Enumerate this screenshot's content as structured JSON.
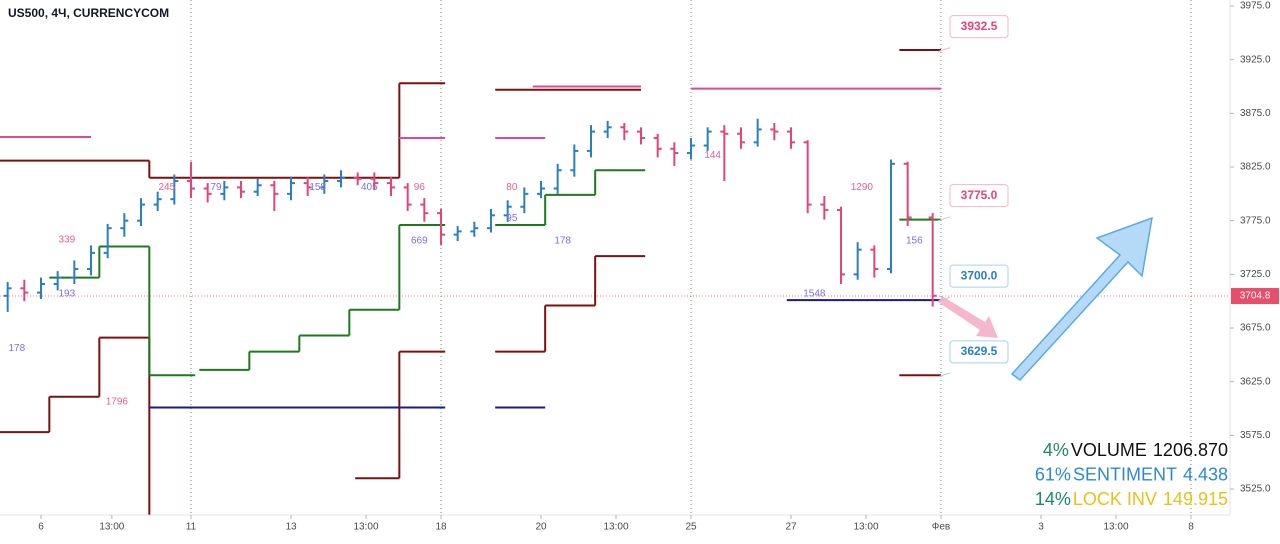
{
  "chart_data": {
    "type": "ohlc",
    "title": "US500, 4Ч, CURRENCYCOM",
    "xlim": [
      -4.92,
      142.68
    ],
    "ylim": [
      3500.8,
      3980.6
    ],
    "xticks": [
      {
        "value": 0,
        "label": "6"
      },
      {
        "value": 8.5,
        "label": "13:00"
      },
      {
        "value": 18,
        "label": "11"
      },
      {
        "value": 30,
        "label": "13"
      },
      {
        "value": 39,
        "label": "13:00"
      },
      {
        "value": 48,
        "label": "18"
      },
      {
        "value": 60,
        "label": "20"
      },
      {
        "value": 69,
        "label": "13:00"
      },
      {
        "value": 78,
        "label": "25"
      },
      {
        "value": 90,
        "label": "27"
      },
      {
        "value": 99,
        "label": "13:00"
      },
      {
        "value": 108,
        "label": "Фев"
      },
      {
        "value": 120,
        "label": "3"
      },
      {
        "value": 129,
        "label": "13:00"
      },
      {
        "value": 138,
        "label": "8"
      }
    ],
    "week_line_ticks": [
      2,
      5,
      8,
      11,
      14
    ],
    "yticks": [
      {
        "value": 3525,
        "label": "3525.0"
      },
      {
        "value": 3575,
        "label": "3575.0"
      },
      {
        "value": 3625,
        "label": "3625.0"
      },
      {
        "value": 3675,
        "label": "3675.0"
      },
      {
        "value": 3725,
        "label": "3725.0"
      },
      {
        "value": 3775,
        "label": "3775.0"
      },
      {
        "value": 3825,
        "label": "3825.0"
      },
      {
        "value": 3875,
        "label": "3875.0"
      },
      {
        "value": 3925,
        "label": "3925.0"
      },
      {
        "value": 3975,
        "label": "3975.0"
      }
    ],
    "up_color": "#2a7fc1",
    "down_color": "#e0457b",
    "x": [
      -4,
      -2,
      0,
      2,
      4,
      6,
      8,
      10,
      12,
      14,
      16,
      18,
      20,
      22,
      24,
      26,
      28,
      30,
      32,
      34,
      36,
      38,
      40,
      42,
      44,
      46,
      48,
      50,
      52,
      54,
      56,
      58,
      60,
      62,
      64,
      66,
      68,
      70,
      72,
      74,
      76,
      78,
      80,
      82,
      84,
      86,
      88,
      90,
      92,
      94,
      96,
      98,
      100,
      102,
      104,
      107
    ],
    "open": [
      3705,
      3712,
      3708,
      3716,
      3722,
      3730,
      3745,
      3768,
      3775,
      3790,
      3795,
      3812,
      3805,
      3800,
      3806,
      3802,
      3808,
      3800,
      3810,
      3806,
      3812,
      3815,
      3814,
      3810,
      3806,
      3790,
      3782,
      3762,
      3765,
      3768,
      3780,
      3788,
      3800,
      3805,
      3822,
      3840,
      3858,
      3862,
      3858,
      3852,
      3842,
      3838,
      3845,
      3858,
      3856,
      3848,
      3860,
      3858,
      3848,
      3790,
      3785,
      3725,
      3748,
      3730,
      3828,
      3778
    ],
    "high": [
      3718,
      3720,
      3722,
      3728,
      3738,
      3752,
      3772,
      3782,
      3796,
      3802,
      3818,
      3830,
      3810,
      3812,
      3812,
      3814,
      3812,
      3816,
      3816,
      3818,
      3822,
      3820,
      3820,
      3816,
      3810,
      3796,
      3786,
      3770,
      3774,
      3786,
      3794,
      3806,
      3812,
      3828,
      3846,
      3864,
      3868,
      3866,
      3862,
      3856,
      3848,
      3852,
      3862,
      3864,
      3862,
      3870,
      3866,
      3862,
      3850,
      3798,
      3788,
      3755,
      3752,
      3832,
      3830,
      3782
    ],
    "low": [
      3690,
      3700,
      3702,
      3710,
      3716,
      3724,
      3740,
      3760,
      3770,
      3784,
      3790,
      3796,
      3792,
      3794,
      3796,
      3798,
      3784,
      3794,
      3798,
      3800,
      3806,
      3808,
      3804,
      3798,
      3784,
      3774,
      3752,
      3756,
      3760,
      3764,
      3774,
      3782,
      3796,
      3800,
      3816,
      3834,
      3852,
      3850,
      3846,
      3834,
      3826,
      3832,
      3840,
      3812,
      3842,
      3844,
      3850,
      3842,
      3782,
      3776,
      3716,
      3720,
      3722,
      3726,
      3770,
      3695
    ],
    "close": [
      3712,
      3708,
      3716,
      3722,
      3730,
      3745,
      3768,
      3775,
      3790,
      3795,
      3812,
      3805,
      3800,
      3806,
      3802,
      3808,
      3800,
      3810,
      3806,
      3812,
      3815,
      3814,
      3810,
      3806,
      3790,
      3782,
      3762,
      3765,
      3768,
      3780,
      3788,
      3800,
      3805,
      3822,
      3840,
      3858,
      3862,
      3858,
      3852,
      3842,
      3838,
      3845,
      3858,
      3856,
      3848,
      3860,
      3858,
      3848,
      3790,
      3785,
      3725,
      3748,
      3730,
      3828,
      3778,
      3705
    ],
    "last_price": 3704.8,
    "last_price_color": "#e84e6b",
    "levels": [
      {
        "color": "#7b1010",
        "segments": [
          [
            -5,
            13,
            3831
          ],
          [
            13,
            43,
            3815
          ],
          [
            43,
            48.5,
            3903
          ],
          [
            54.5,
            72,
            3897
          ],
          [
            103,
            108,
            3934
          ],
          [
            103,
            108,
            3631
          ]
        ]
      },
      {
        "color": "#7b1010",
        "segments": [
          [
            -5,
            1,
            3578
          ],
          [
            1,
            7,
            3611
          ],
          [
            7,
            13,
            3666
          ],
          [
            13,
            13,
            3501
          ],
          [
            37.7,
            43,
            3535
          ],
          [
            43,
            48.5,
            3653
          ],
          [
            54.5,
            60.5,
            3653
          ],
          [
            60.5,
            66.5,
            3696
          ],
          [
            66.5,
            72.5,
            3742
          ]
        ]
      },
      {
        "color": "#1f7a1f",
        "segments": [
          [
            1,
            7,
            3722
          ],
          [
            7,
            13,
            3751
          ],
          [
            13,
            18.5,
            3631
          ],
          [
            19,
            25,
            3636
          ],
          [
            25,
            31,
            3653
          ],
          [
            31,
            37,
            3668
          ],
          [
            37,
            43,
            3692
          ],
          [
            43,
            48.5,
            3771
          ],
          [
            54.5,
            60.5,
            3771
          ],
          [
            60.5,
            66.5,
            3799
          ],
          [
            66.5,
            72.5,
            3822
          ],
          [
            103,
            108,
            3776
          ]
        ]
      },
      {
        "color": "#d84a9a",
        "segments": [
          [
            -5,
            6,
            3853
          ],
          [
            43,
            48.5,
            3852
          ],
          [
            54.5,
            60.5,
            3852
          ],
          [
            59,
            72,
            3900
          ],
          [
            78,
            108,
            3898
          ],
          [
            13,
            43,
            3601
          ]
        ]
      },
      {
        "color": "#1a1a8a",
        "segments": [
          [
            13,
            48.5,
            3601
          ],
          [
            54.5,
            60.5,
            3601
          ],
          [
            89.5,
            108,
            3701
          ]
        ]
      }
    ],
    "annotations": [
      {
        "text": "178",
        "x": -2.9,
        "price": 3656,
        "color": "#7b6fe0"
      },
      {
        "text": "1796",
        "x": 9.1,
        "price": 3606,
        "color": "#e0609a"
      },
      {
        "text": "339",
        "x": 3.1,
        "price": 3757,
        "color": "#e0609a"
      },
      {
        "text": "193",
        "x": 3.1,
        "price": 3707,
        "color": "#7b6fe0"
      },
      {
        "text": "245",
        "x": 15.1,
        "price": 3806,
        "color": "#e0609a"
      },
      {
        "text": "79",
        "x": 21,
        "price": 3806,
        "color": "#7b6fe0"
      },
      {
        "text": "158",
        "x": 33.2,
        "price": 3806,
        "color": "#7b6fe0"
      },
      {
        "text": "405",
        "x": 39.4,
        "price": 3806,
        "color": "#7b6fe0"
      },
      {
        "text": "96",
        "x": 45.4,
        "price": 3806,
        "color": "#e0609a"
      },
      {
        "text": "669",
        "x": 45.4,
        "price": 3756,
        "color": "#7b6fe0"
      },
      {
        "text": "80",
        "x": 56.5,
        "price": 3806,
        "color": "#e0609a"
      },
      {
        "text": "95",
        "x": 56.5,
        "price": 3777,
        "color": "#7b6fe0"
      },
      {
        "text": "178",
        "x": 62.6,
        "price": 3756,
        "color": "#7b6fe0"
      },
      {
        "text": "144",
        "x": 80.6,
        "price": 3836,
        "color": "#e0609a"
      },
      {
        "text": "1290",
        "x": 98.5,
        "price": 3806,
        "color": "#e0609a"
      },
      {
        "text": "1548",
        "x": 92.8,
        "price": 3707,
        "color": "#7b6fe0"
      },
      {
        "text": "156",
        "x": 104.8,
        "price": 3756,
        "color": "#7b6fe0"
      }
    ],
    "price_labels": [
      {
        "value": 3932.5,
        "label": "3932.5",
        "color": "#e0457b",
        "border": "#f5b5c9"
      },
      {
        "value": 3775,
        "label": "3775.0",
        "color": "#e0457b",
        "border": "#f5b5c9"
      },
      {
        "value": 3700,
        "label": "3700.0",
        "color": "#2a7fc1",
        "border": "#a9d2ee"
      },
      {
        "value": 3629.5,
        "label": "3629.5",
        "color": "#2a7fc1",
        "border": "#a9d2ee"
      }
    ],
    "indicators": [
      {
        "pct": "4%",
        "name": "VOLUME",
        "value": "1206.870",
        "pct_color": "#1b8a6b",
        "color": "#111111"
      },
      {
        "pct": "61%",
        "name": "SENTIMENT",
        "value": "4.438",
        "pct_color": "#2b8ad6",
        "color": "#2b8ad6"
      },
      {
        "pct": "14%",
        "name": "LOCK INV",
        "value": "149.915",
        "pct_color": "#1b8a6b",
        "color": "#e8c21a"
      }
    ]
  }
}
